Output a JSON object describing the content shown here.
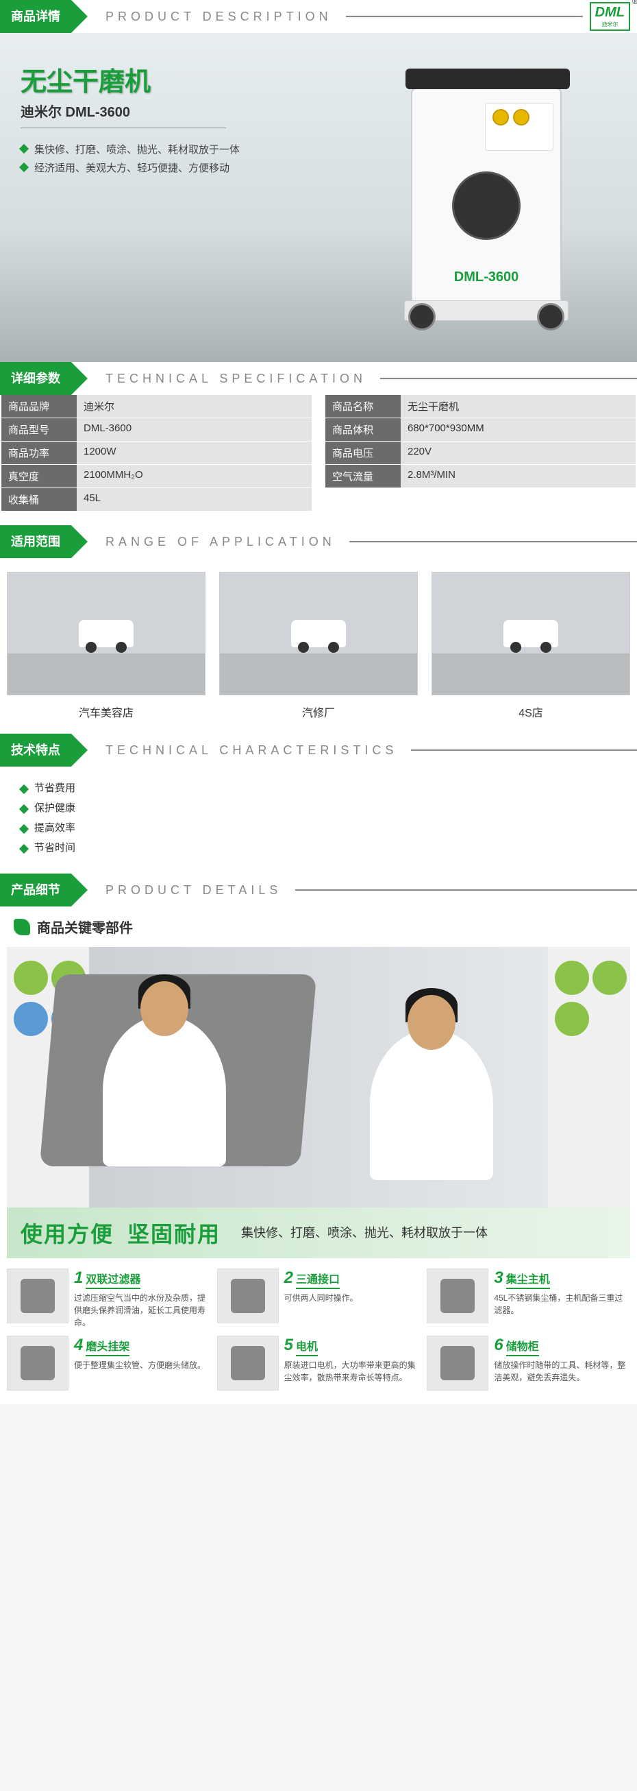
{
  "colors": {
    "primary": "#1a9e3b",
    "headerGrey": "#6b6b6b",
    "valueGrey": "#e4e4e4"
  },
  "logo": {
    "text": "DML",
    "sub": "迪米尔"
  },
  "sections": {
    "desc": {
      "cn": "商品详情",
      "en": "PRODUCT DESCRIPTION"
    },
    "spec": {
      "cn": "详细参数",
      "en": "TECHNICAL SPECIFICATION"
    },
    "range": {
      "cn": "适用范围",
      "en": "RANGE OF APPLICATION"
    },
    "tech": {
      "cn": "技术特点",
      "en": "TECHNICAL CHARACTERISTICS"
    },
    "detail": {
      "cn": "产品细节",
      "en": "PRODUCT DETAILS"
    }
  },
  "hero": {
    "title": "无尘干磨机",
    "subtitle": "迪米尔 DML-3600",
    "features": [
      "集快修、打磨、喷涂、抛光、耗材取放于一体",
      "经济适用、美观大方、轻巧便捷、方便移动"
    ],
    "machineLabel": "DML-3600"
  },
  "specs": {
    "left": [
      {
        "label": "商品品牌",
        "value": "迪米尔"
      },
      {
        "label": "商品型号",
        "value": "DML-3600"
      },
      {
        "label": "商品功率",
        "value": "1200W"
      },
      {
        "label": "真空度",
        "value": "2100MMH₂O"
      },
      {
        "label": "收集桶",
        "value": "45L"
      }
    ],
    "right": [
      {
        "label": "商品名称",
        "value": "无尘干磨机"
      },
      {
        "label": "商品体积",
        "value": "680*700*930MM"
      },
      {
        "label": "商品电压",
        "value": "220V"
      },
      {
        "label": "空气流量",
        "value": "2.8M³/MIN"
      }
    ]
  },
  "range": {
    "items": [
      {
        "caption": "汽车美容店"
      },
      {
        "caption": "汽修厂"
      },
      {
        "caption": "4S店"
      }
    ]
  },
  "techFeatures": [
    "节省费用",
    "保护健康",
    "提高效率",
    "节省时间"
  ],
  "detailSubheader": "商品关键零部件",
  "banner": {
    "big1": "使用方便",
    "big2": "坚固耐用",
    "small": "集快修、打磨、喷涂、抛光、耗材取放于一体"
  },
  "components": [
    {
      "num": "1",
      "name": "双联过滤器",
      "desc": "过滤压缩空气当中的水份及杂质，提供磨头保养润滑油，延长工具使用寿命。"
    },
    {
      "num": "2",
      "name": "三通接口",
      "desc": "可供两人同时操作。"
    },
    {
      "num": "3",
      "name": "集尘主机",
      "desc": "45L不锈钢集尘桶，主机配备三重过滤器。"
    },
    {
      "num": "4",
      "name": "磨头挂架",
      "desc": "便于整理集尘软管、方便磨头储放。"
    },
    {
      "num": "5",
      "name": "电机",
      "desc": "原装进口电机，大功率带来更高的集尘效率，散热带来寿命长等特点。"
    },
    {
      "num": "6",
      "name": "储物柜",
      "desc": "储放操作时随带的工具、耗材等，整洁美观，避免丢弃遗失。"
    }
  ]
}
